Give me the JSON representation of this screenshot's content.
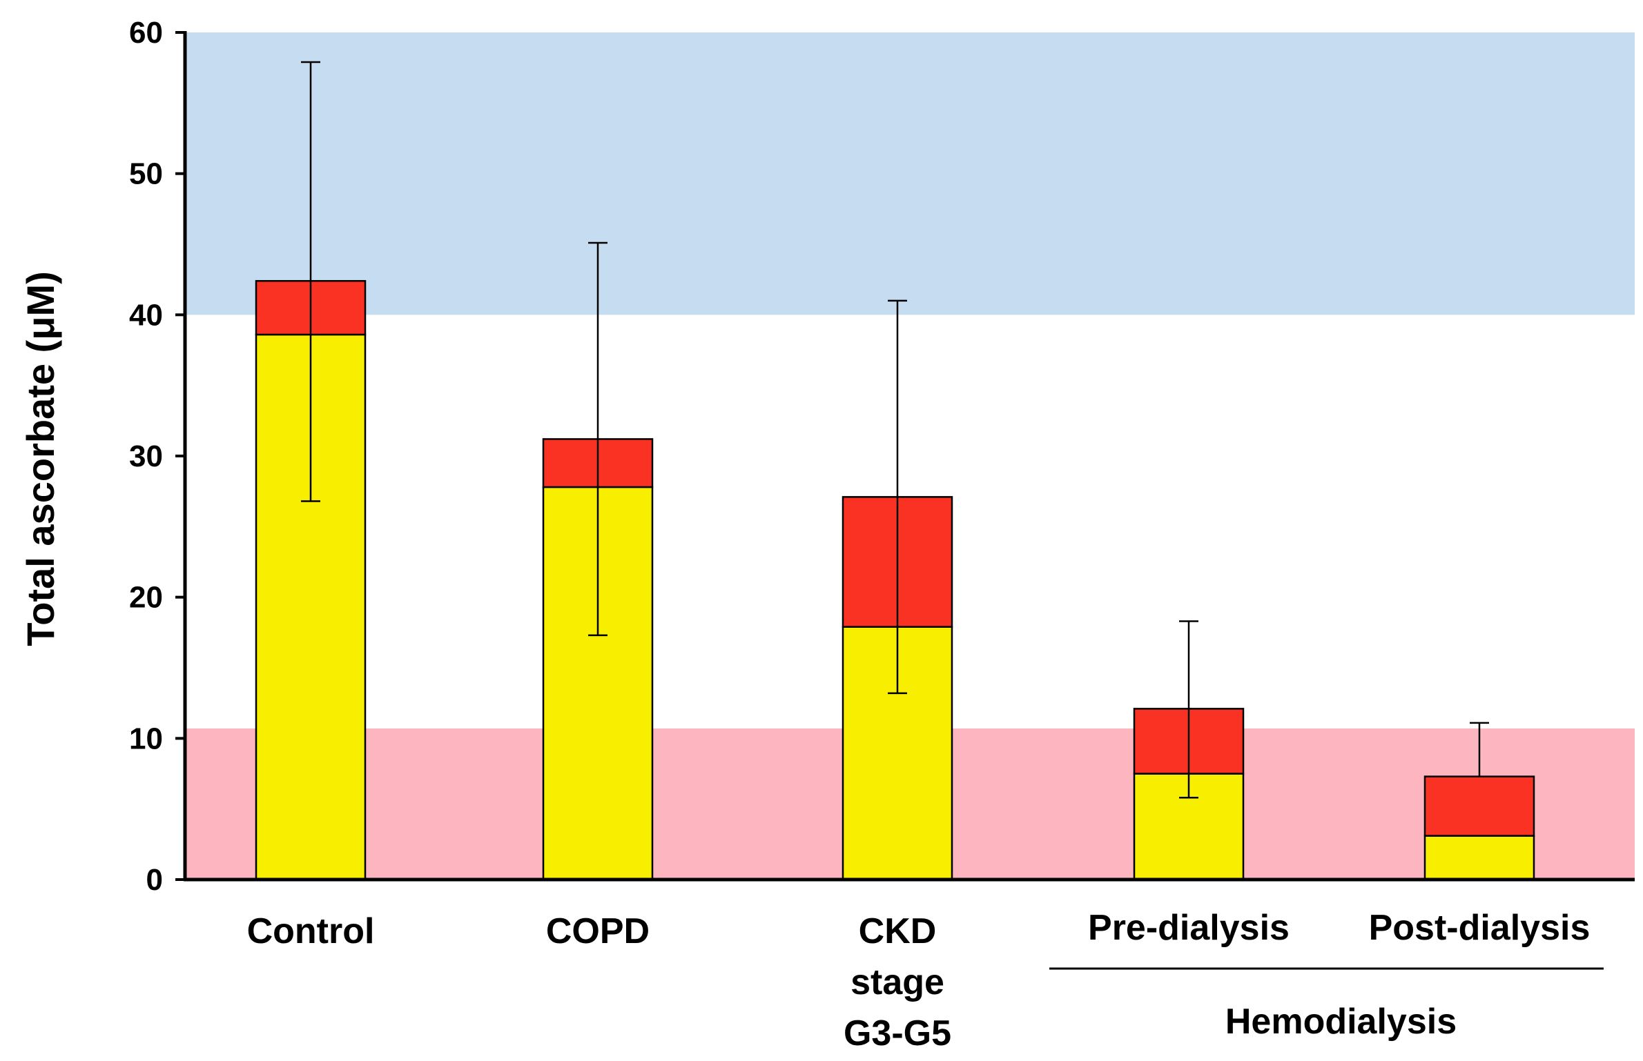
{
  "chart_data": {
    "type": "bar",
    "stacked": true,
    "ylabel": "Total ascorbate (μM)",
    "xlabel": "",
    "ylim": [
      0,
      60
    ],
    "yticks": [
      0,
      10,
      20,
      30,
      40,
      50,
      60
    ],
    "categories": [
      {
        "lines": [
          "Control"
        ]
      },
      {
        "lines": [
          "COPD"
        ]
      },
      {
        "lines": [
          "CKD",
          "stage",
          "G3-G5"
        ]
      },
      {
        "lines": [
          "Pre-dialysis"
        ]
      },
      {
        "lines": [
          "Post-dialysis"
        ]
      }
    ],
    "series": [
      {
        "name": "lower segment",
        "color": "#f8ee00",
        "values": [
          38.6,
          27.8,
          17.9,
          7.5,
          3.1
        ]
      },
      {
        "name": "upper segment",
        "color": "#fa3224",
        "values": [
          3.8,
          3.4,
          9.2,
          4.6,
          4.2
        ]
      }
    ],
    "totals": [
      42.4,
      31.2,
      27.1,
      12.1,
      7.3
    ],
    "error_bars": [
      {
        "low": 26.8,
        "high": 57.9
      },
      {
        "low": 17.3,
        "high": 45.1
      },
      {
        "low": 13.2,
        "high": 41.0
      },
      {
        "low": 5.8,
        "high": 18.3
      },
      {
        "low": null,
        "high": 11.1
      }
    ],
    "bands": [
      {
        "from": 40,
        "to": 60,
        "color": "#c5dcf1"
      },
      {
        "from": 0,
        "to": 10.7,
        "color": "#fdb6bf"
      }
    ],
    "group_label": {
      "text": "Hemodialysis",
      "from_index": 3,
      "to_index": 4
    }
  }
}
